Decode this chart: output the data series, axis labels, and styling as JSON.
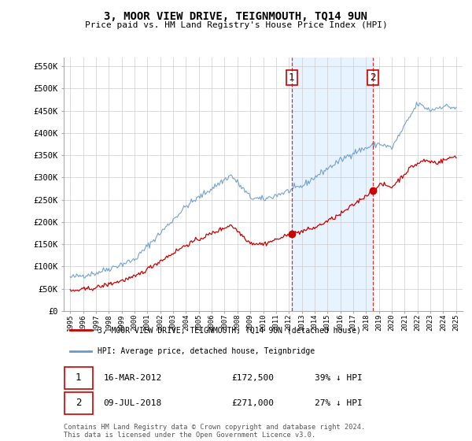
{
  "title": "3, MOOR VIEW DRIVE, TEIGNMOUTH, TQ14 9UN",
  "subtitle": "Price paid vs. HM Land Registry's House Price Index (HPI)",
  "red_label": "3, MOOR VIEW DRIVE, TEIGNMOUTH, TQ14 9UN (detached house)",
  "blue_label": "HPI: Average price, detached house, Teignbridge",
  "transaction1_date": "16-MAR-2012",
  "transaction1_price": "£172,500",
  "transaction1_hpi": "39% ↓ HPI",
  "transaction2_date": "09-JUL-2018",
  "transaction2_price": "£271,000",
  "transaction2_hpi": "27% ↓ HPI",
  "footer": "Contains HM Land Registry data © Crown copyright and database right 2024.\nThis data is licensed under the Open Government Licence v3.0.",
  "ylim": [
    0,
    570000
  ],
  "yticks": [
    0,
    50000,
    100000,
    150000,
    200000,
    250000,
    300000,
    350000,
    400000,
    450000,
    500000,
    550000
  ],
  "ytick_labels": [
    "£0",
    "£50K",
    "£100K",
    "£150K",
    "£200K",
    "£250K",
    "£300K",
    "£350K",
    "£400K",
    "£450K",
    "£500K",
    "£550K"
  ],
  "vline1_x": 2012.21,
  "vline2_x": 2018.52,
  "dot1_x": 2012.21,
  "dot1_y": 172500,
  "dot2_x": 2018.52,
  "dot2_y": 271000,
  "red_color": "#cc0000",
  "blue_color": "#6699cc",
  "fill_color": "#ddeeff",
  "vline_color": "#cc0000",
  "background_color": "#ffffff",
  "grid_color": "#cccccc",
  "xmin": 1995,
  "xmax": 2025
}
